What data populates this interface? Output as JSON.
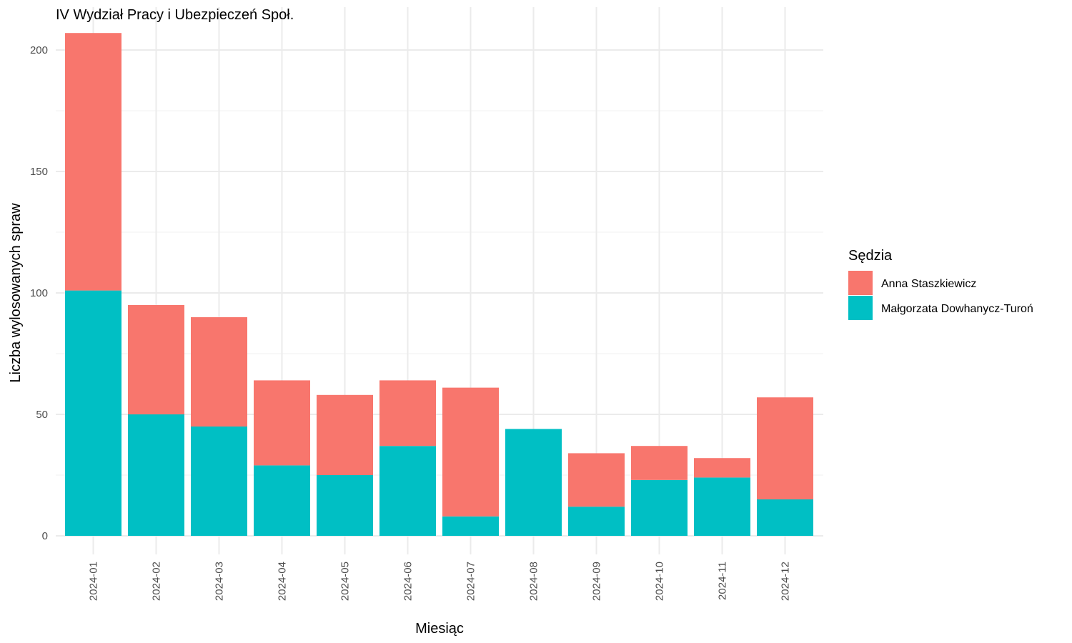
{
  "chart_data": {
    "type": "bar",
    "stacked": true,
    "title": "IV Wydział Pracy i Ubezpieczeń Społ.",
    "xlabel": "Miesiąc",
    "ylabel": "Liczba wylosowanych spraw",
    "categories": [
      "2024-01",
      "2024-02",
      "2024-03",
      "2024-04",
      "2024-05",
      "2024-06",
      "2024-07",
      "2024-08",
      "2024-09",
      "2024-10",
      "2024-11",
      "2024-12"
    ],
    "series": [
      {
        "name": "Małgorzata Dowhanycz-Turoń",
        "color": "#00BFC4",
        "values": [
          101,
          50,
          45,
          29,
          25,
          37,
          8,
          44,
          12,
          23,
          24,
          15
        ]
      },
      {
        "name": "Anna Staszkiewicz",
        "color": "#F8766D",
        "values": [
          106,
          45,
          45,
          35,
          33,
          27,
          53,
          0,
          22,
          14,
          8,
          42
        ]
      }
    ],
    "ylim": [
      0,
      210
    ],
    "yticks": [
      0,
      50,
      100,
      150,
      200
    ],
    "grid": true,
    "legend": {
      "title": "Sędzia",
      "placement": "right",
      "order": [
        "Anna Staszkiewicz",
        "Małgorzata Dowhanycz-Turoń"
      ]
    }
  }
}
